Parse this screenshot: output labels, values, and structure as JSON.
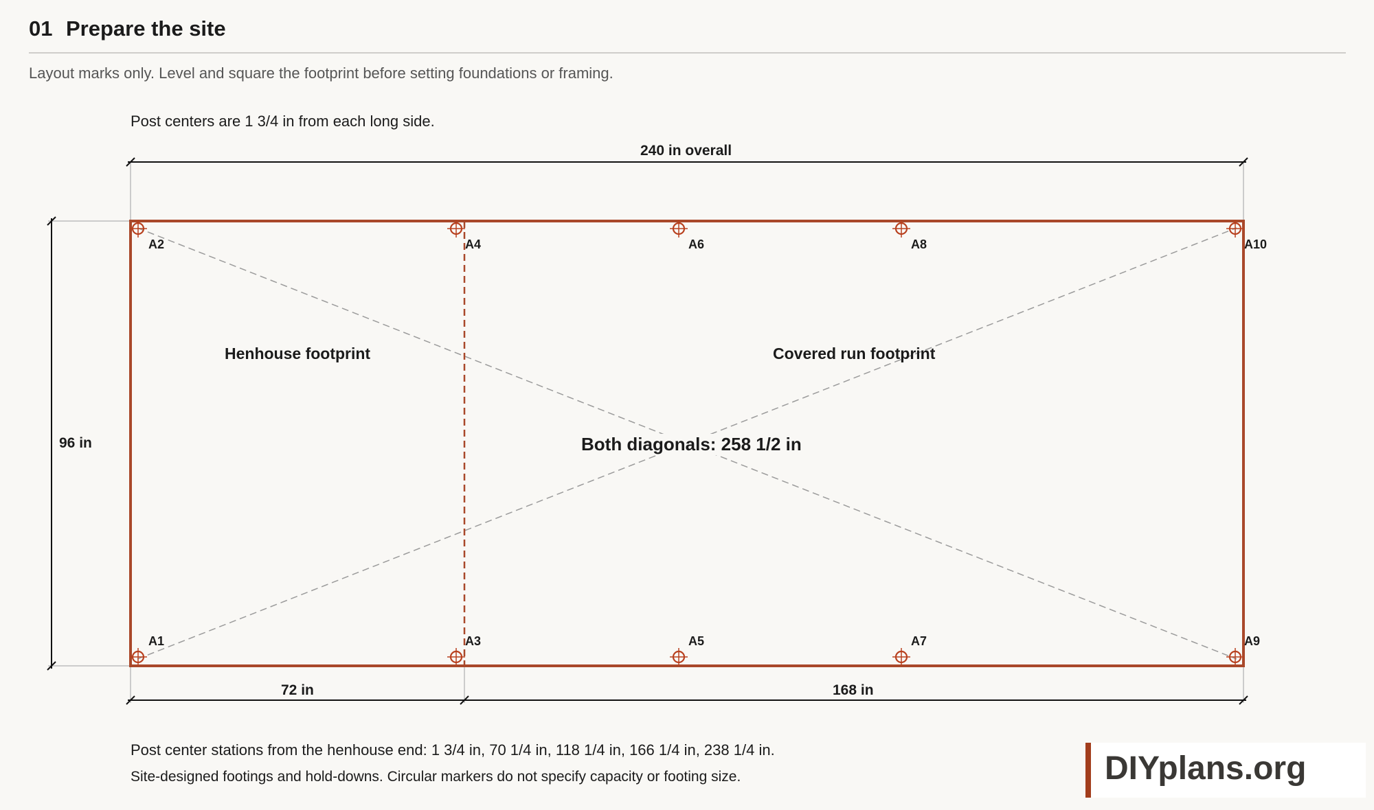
{
  "header": {
    "step_number": "01",
    "title": "Prepare the site",
    "subtitle": "Layout marks only. Level and square the footprint before setting foundations or framing."
  },
  "notes": {
    "top": "Post centers are 1 3/4 in from each long side.",
    "stations": "Post center stations from the henhouse end: 1 3/4 in, 70 1/4 in, 118 1/4 in, 166 1/4 in, 238 1/4 in.",
    "disclaimer": "Site-designed footings and hold-downs. Circular markers do not specify capacity or footing size."
  },
  "dimensions": {
    "overall": "240 in overall",
    "depth": "96 in",
    "henhouse_length": "72 in",
    "run_length": "168 in",
    "diagonals": "Both diagonals: 258 1/2 in"
  },
  "areas": {
    "henhouse": "Henhouse footprint",
    "run": "Covered run footprint"
  },
  "posts": {
    "A1": "A1",
    "A2": "A2",
    "A3": "A3",
    "A4": "A4",
    "A5": "A5",
    "A6": "A6",
    "A7": "A7",
    "A8": "A8",
    "A9": "A9",
    "A10": "A10"
  },
  "colors": {
    "outline": "#a9482a",
    "marker": "#b8401e",
    "dimension": "#111111",
    "diagonal": "#9b9b9b"
  },
  "logo": {
    "text": "DIYplans.org"
  }
}
